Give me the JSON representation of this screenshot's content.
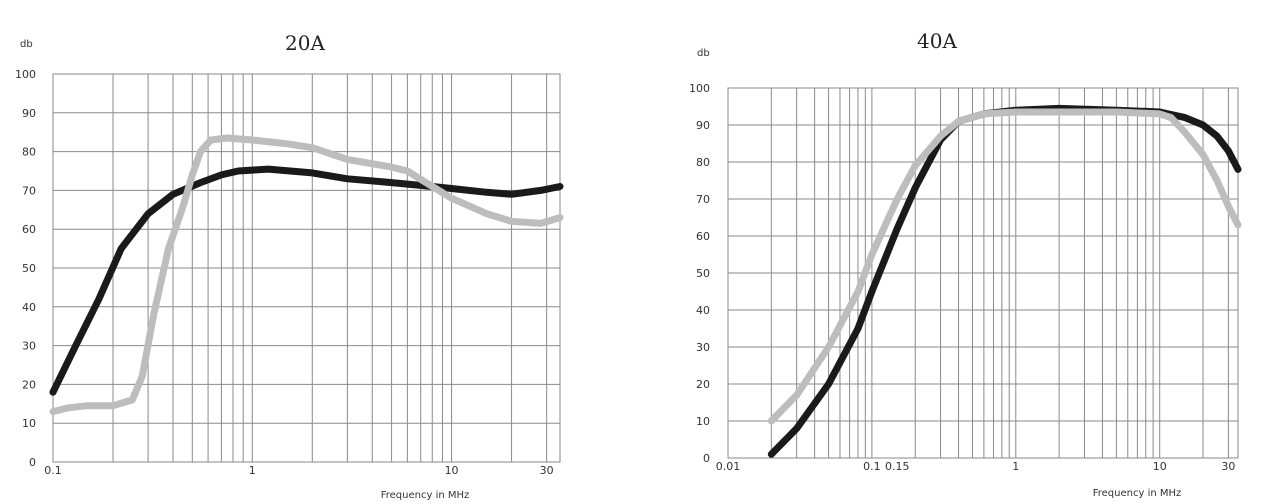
{
  "chart_data": [
    {
      "type": "line",
      "title": "20A",
      "ylabel": "db",
      "xlabel": "Frequency in MHz",
      "x_scale": "log",
      "xlim": [
        0.1,
        35
      ],
      "ylim": [
        0,
        100
      ],
      "grid": true,
      "y_ticks": [
        "0",
        "10",
        "20",
        "30",
        "40",
        "50",
        "60",
        "70",
        "80",
        "90",
        "100"
      ],
      "x_tick_labels": [
        {
          "value": 0.1,
          "label": "0.1"
        },
        {
          "value": 1,
          "label": "1"
        },
        {
          "value": 10,
          "label": "10"
        },
        {
          "value": 30,
          "label": "30"
        }
      ],
      "series": [
        {
          "color": "#1a1a1a",
          "points": [
            [
              0.1,
              18
            ],
            [
              0.13,
              30
            ],
            [
              0.17,
              42
            ],
            [
              0.22,
              55
            ],
            [
              0.3,
              64
            ],
            [
              0.4,
              69
            ],
            [
              0.55,
              72
            ],
            [
              0.7,
              74
            ],
            [
              0.85,
              75
            ],
            [
              1.2,
              75.5
            ],
            [
              2,
              74.5
            ],
            [
              3,
              73
            ],
            [
              5,
              72
            ],
            [
              8,
              71
            ],
            [
              10,
              70.5
            ],
            [
              15,
              69.5
            ],
            [
              20,
              69
            ],
            [
              28,
              70
            ],
            [
              35,
              71
            ]
          ]
        },
        {
          "color": "#bdbdbd",
          "points": [
            [
              0.1,
              13
            ],
            [
              0.12,
              14
            ],
            [
              0.15,
              14.5
            ],
            [
              0.2,
              14.5
            ],
            [
              0.25,
              16
            ],
            [
              0.28,
              22
            ],
            [
              0.32,
              38
            ],
            [
              0.38,
              55
            ],
            [
              0.45,
              66
            ],
            [
              0.5,
              74
            ],
            [
              0.55,
              80
            ],
            [
              0.62,
              83
            ],
            [
              0.75,
              83.5
            ],
            [
              1,
              83
            ],
            [
              1.5,
              82
            ],
            [
              2,
              81
            ],
            [
              3,
              78
            ],
            [
              5,
              76
            ],
            [
              6,
              75
            ],
            [
              8,
              71
            ],
            [
              10,
              68
            ],
            [
              15,
              64
            ],
            [
              20,
              62
            ],
            [
              28,
              61.5
            ],
            [
              35,
              63
            ]
          ]
        }
      ]
    },
    {
      "type": "line",
      "title": "40A",
      "ylabel": "db",
      "xlabel": "Frequency in MHz",
      "x_scale": "log",
      "xlim": [
        0.01,
        35
      ],
      "ylim": [
        0,
        100
      ],
      "grid": true,
      "y_ticks": [
        "0",
        "10",
        "20",
        "30",
        "40",
        "50",
        "60",
        "70",
        "80",
        "90",
        "100"
      ],
      "x_tick_labels": [
        {
          "value": 0.01,
          "label": "0.01"
        },
        {
          "value": 0.1,
          "label": "0.1"
        },
        {
          "value": 0.15,
          "label": "0.15"
        },
        {
          "value": 1,
          "label": "1"
        },
        {
          "value": 10,
          "label": "10"
        },
        {
          "value": 30,
          "label": "30"
        }
      ],
      "series": [
        {
          "color": "#1a1a1a",
          "points": [
            [
              0.02,
              1
            ],
            [
              0.03,
              8
            ],
            [
              0.05,
              20
            ],
            [
              0.08,
              35
            ],
            [
              0.1,
              45
            ],
            [
              0.15,
              62
            ],
            [
              0.2,
              73
            ],
            [
              0.3,
              86
            ],
            [
              0.4,
              91
            ],
            [
              0.6,
              93
            ],
            [
              1,
              94
            ],
            [
              2,
              94.5
            ],
            [
              5,
              94
            ],
            [
              10,
              93.5
            ],
            [
              15,
              92
            ],
            [
              20,
              90
            ],
            [
              25,
              87
            ],
            [
              30,
              83
            ],
            [
              35,
              78
            ]
          ]
        },
        {
          "color": "#bdbdbd",
          "points": [
            [
              0.02,
              10
            ],
            [
              0.03,
              17
            ],
            [
              0.05,
              30
            ],
            [
              0.08,
              45
            ],
            [
              0.1,
              55
            ],
            [
              0.15,
              70
            ],
            [
              0.2,
              79
            ],
            [
              0.3,
              87
            ],
            [
              0.4,
              91
            ],
            [
              0.6,
              93
            ],
            [
              1,
              93.5
            ],
            [
              2,
              93.5
            ],
            [
              5,
              93.5
            ],
            [
              10,
              93
            ],
            [
              12,
              92
            ],
            [
              15,
              88
            ],
            [
              20,
              82
            ],
            [
              25,
              75
            ],
            [
              30,
              68
            ],
            [
              35,
              63
            ]
          ]
        }
      ]
    }
  ]
}
